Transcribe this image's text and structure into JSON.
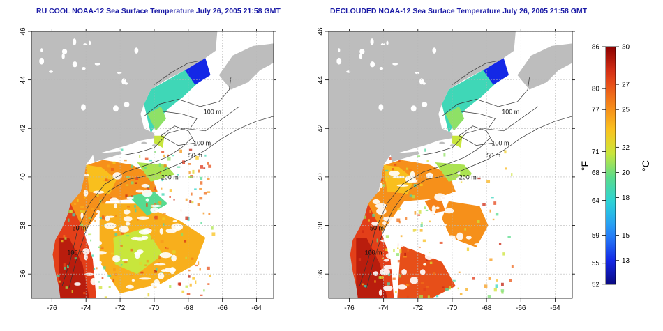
{
  "panels": [
    {
      "title": "RU COOL NOAA-12 Sea Surface Temperature July 26, 2005 21:58 GMT",
      "variant": "cloud"
    },
    {
      "title": "DECLOUDED NOAA-12 Sea Surface Temperature July 26, 2005 21:58 GMT",
      "variant": "decloud"
    }
  ],
  "axes": {
    "lon_ticks": [
      "-76",
      "-74",
      "-72",
      "-70",
      "-68",
      "-66",
      "-64"
    ],
    "lat_ticks": [
      "36",
      "38",
      "40",
      "42",
      "44",
      "46"
    ],
    "lon_range": [
      -77.2,
      -63.0
    ],
    "lat_range": [
      35.0,
      46.0
    ]
  },
  "contour_labels": [
    "100 m",
    "100 m",
    "50 m",
    "200 m",
    "50 m",
    "100 m"
  ],
  "colorbar": {
    "unit_f": "°F",
    "unit_c": "°C",
    "f_ticks": [
      "86",
      "80",
      "77",
      "71",
      "68",
      "64",
      "59",
      "55",
      "52"
    ],
    "c_ticks": [
      "30",
      "27",
      "25",
      "22",
      "20",
      "18",
      "15",
      "13"
    ],
    "f_values": [
      86,
      80,
      77,
      71,
      68,
      64,
      59,
      55,
      52
    ],
    "c_values": [
      30,
      27,
      25,
      22,
      20,
      18,
      15,
      13
    ],
    "c_range": [
      11.1,
      30.0
    ]
  },
  "colors": {
    "land": "#bdbdbd",
    "ocean_blank": "#ffffff",
    "title": "#1a1aa6",
    "grid": "#b8b8b8",
    "contour": "#333333"
  }
}
